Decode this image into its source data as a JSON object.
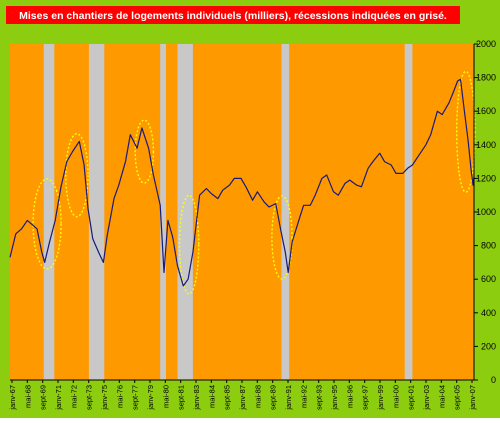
{
  "chart_data": {
    "type": "line",
    "title": "Mises en chantiers de logements individuels (milliers), récessions indiquées en grisé.",
    "xlabel": "",
    "ylabel": "",
    "ylim": [
      0,
      2000
    ],
    "y_ticks": [
      0,
      200,
      400,
      600,
      800,
      1000,
      1200,
      1400,
      1600,
      1800,
      2000
    ],
    "y_axis_side": "right",
    "grid": false,
    "legend": "none",
    "x_tick_labels": [
      "janv-67",
      "mai-68",
      "sept-69",
      "janv-71",
      "mai-72",
      "sept-73",
      "janv-75",
      "mai-76",
      "sept-77",
      "janv-79",
      "mai-80",
      "sept-81",
      "janv-83",
      "mai-84",
      "sept-85",
      "janv-87",
      "mai-88",
      "sept-89",
      "janv-91",
      "mai-92",
      "sept-93",
      "janv-95",
      "mai-96",
      "sept-97",
      "janv-99",
      "mai-00",
      "sept-01",
      "janv-03",
      "mai-04",
      "sept-05",
      "janv-07"
    ],
    "recessions": [
      {
        "start": "1969-12",
        "end": "1970-11"
      },
      {
        "start": "1973-11",
        "end": "1975-03"
      },
      {
        "start": "1980-01",
        "end": "1980-07"
      },
      {
        "start": "1981-07",
        "end": "1982-11"
      },
      {
        "start": "1990-07",
        "end": "1991-03"
      },
      {
        "start": "2001-03",
        "end": "2001-11"
      }
    ],
    "highlighted_troughs": [
      {
        "start": "1969-01",
        "end": "1971-06"
      },
      {
        "start": "1971-11",
        "end": "1973-10"
      },
      {
        "start": "1977-11",
        "end": "1979-06"
      },
      {
        "start": "1981-09",
        "end": "1983-05"
      },
      {
        "start": "1989-09",
        "end": "1991-06"
      },
      {
        "start": "2005-09",
        "end": "2007-04"
      }
    ],
    "series": [
      {
        "values": [
          [
            "1967-01",
            730
          ],
          [
            "1967-07",
            870
          ],
          [
            "1968-01",
            900
          ],
          [
            "1968-07",
            950
          ],
          [
            "1969-01",
            920
          ],
          [
            "1969-05",
            900
          ],
          [
            "1969-10",
            760
          ],
          [
            "1970-01",
            700
          ],
          [
            "1970-06",
            820
          ],
          [
            "1970-12",
            950
          ],
          [
            "1971-06",
            1150
          ],
          [
            "1971-12",
            1300
          ],
          [
            "1972-06",
            1360
          ],
          [
            "1973-01",
            1420
          ],
          [
            "1973-06",
            1280
          ],
          [
            "1973-10",
            1020
          ],
          [
            "1974-03",
            840
          ],
          [
            "1974-09",
            760
          ],
          [
            "1975-02",
            700
          ],
          [
            "1975-06",
            860
          ],
          [
            "1976-01",
            1080
          ],
          [
            "1976-06",
            1160
          ],
          [
            "1977-01",
            1300
          ],
          [
            "1977-06",
            1460
          ],
          [
            "1978-01",
            1380
          ],
          [
            "1978-06",
            1500
          ],
          [
            "1979-01",
            1380
          ],
          [
            "1979-06",
            1220
          ],
          [
            "1980-01",
            1040
          ],
          [
            "1980-05",
            640
          ],
          [
            "1980-09",
            950
          ],
          [
            "1981-02",
            850
          ],
          [
            "1981-07",
            680
          ],
          [
            "1982-01",
            560
          ],
          [
            "1982-06",
            600
          ],
          [
            "1982-11",
            760
          ],
          [
            "1983-06",
            1100
          ],
          [
            "1984-01",
            1140
          ],
          [
            "1984-06",
            1110
          ],
          [
            "1985-01",
            1080
          ],
          [
            "1985-06",
            1130
          ],
          [
            "1986-01",
            1160
          ],
          [
            "1986-06",
            1200
          ],
          [
            "1987-01",
            1200
          ],
          [
            "1987-06",
            1150
          ],
          [
            "1988-01",
            1070
          ],
          [
            "1988-06",
            1120
          ],
          [
            "1989-01",
            1060
          ],
          [
            "1989-06",
            1030
          ],
          [
            "1990-01",
            1050
          ],
          [
            "1990-06",
            900
          ],
          [
            "1990-11",
            760
          ],
          [
            "1991-02",
            640
          ],
          [
            "1991-06",
            820
          ],
          [
            "1992-01",
            950
          ],
          [
            "1992-06",
            1040
          ],
          [
            "1993-01",
            1040
          ],
          [
            "1993-06",
            1100
          ],
          [
            "1994-01",
            1200
          ],
          [
            "1994-06",
            1220
          ],
          [
            "1995-01",
            1120
          ],
          [
            "1995-06",
            1100
          ],
          [
            "1996-01",
            1170
          ],
          [
            "1996-06",
            1190
          ],
          [
            "1997-01",
            1160
          ],
          [
            "1997-06",
            1150
          ],
          [
            "1998-01",
            1260
          ],
          [
            "1998-06",
            1300
          ],
          [
            "1999-01",
            1350
          ],
          [
            "1999-06",
            1300
          ],
          [
            "2000-01",
            1280
          ],
          [
            "2000-06",
            1230
          ],
          [
            "2001-01",
            1230
          ],
          [
            "2001-06",
            1260
          ],
          [
            "2001-11",
            1280
          ],
          [
            "2002-06",
            1340
          ],
          [
            "2003-01",
            1400
          ],
          [
            "2003-06",
            1460
          ],
          [
            "2004-01",
            1600
          ],
          [
            "2004-06",
            1580
          ],
          [
            "2005-01",
            1650
          ],
          [
            "2005-06",
            1720
          ],
          [
            "2005-10",
            1780
          ],
          [
            "2006-01",
            1790
          ],
          [
            "2006-05",
            1600
          ],
          [
            "2006-09",
            1420
          ],
          [
            "2006-12",
            1250
          ],
          [
            "2007-02",
            1160
          ],
          [
            "2007-03",
            1210
          ]
        ]
      }
    ],
    "colors": {
      "frame": "#8dcd10",
      "plot_background": "#ff9900",
      "recession_band": "#c8c8c8",
      "line": "#1a1a7a",
      "trough_marker": "#ffff00",
      "title_background": "#ff0000",
      "title_text": "#ffffff"
    }
  }
}
